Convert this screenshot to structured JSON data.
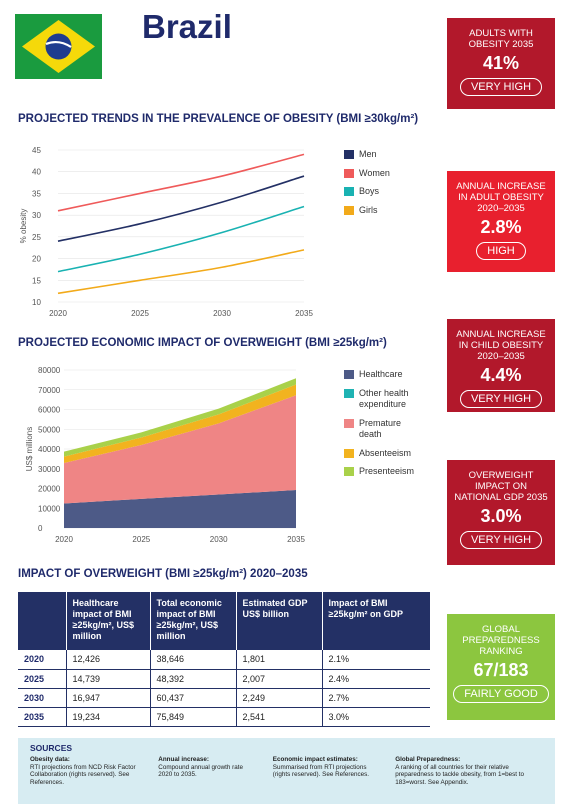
{
  "country": "Brazil",
  "colors": {
    "navy": "#233065",
    "red_dark": "#b2182b",
    "red_bright": "#e8202e",
    "green": "#8cc63f",
    "men": "#233065",
    "women": "#ef5a5a",
    "boys": "#19b2b2",
    "girls": "#f2aa1a",
    "healthcare": "#4d5a87",
    "other_health": "#1fb3b3",
    "premature_death": "#ef8585",
    "absenteeism": "#f2b31f",
    "presenteeism": "#a9d14a"
  },
  "sections": {
    "trends_title": "PROJECTED TRENDS IN THE PREVALENCE OF OBESITY (BMI ≥30kg/m²)",
    "economic_title": "PROJECTED ECONOMIC IMPACT OF OVERWEIGHT (BMI ≥25kg/m²)",
    "table_title": "IMPACT OF OVERWEIGHT (BMI ≥25kg/m²) 2020–2035"
  },
  "chart_data": [
    {
      "type": "line",
      "ylabel": "% obesity",
      "xlabel": "",
      "x": [
        2020,
        2025,
        2030,
        2035
      ],
      "yticks": [
        10,
        15,
        20,
        25,
        30,
        35,
        40,
        45
      ],
      "ylim": [
        10,
        45
      ],
      "legend_position": "right",
      "series": [
        {
          "name": "Men",
          "values": [
            24,
            28,
            33,
            39
          ],
          "color": "#233065"
        },
        {
          "name": "Women",
          "values": [
            31,
            35,
            39,
            44
          ],
          "color": "#ef5a5a"
        },
        {
          "name": "Boys",
          "values": [
            17,
            21,
            26,
            32
          ],
          "color": "#19b2b2"
        },
        {
          "name": "Girls",
          "values": [
            12,
            15,
            18,
            22
          ],
          "color": "#f2aa1a"
        }
      ]
    },
    {
      "type": "area",
      "stacked": true,
      "ylabel": "US$ millions",
      "xlabel": "",
      "x": [
        2020,
        2025,
        2030,
        2035
      ],
      "yticks": [
        0,
        10000,
        20000,
        30000,
        40000,
        50000,
        60000,
        70000,
        80000
      ],
      "ylim": [
        0,
        80000
      ],
      "legend_position": "right",
      "series": [
        {
          "name": "Healthcare",
          "values": [
            12426,
            14739,
            16947,
            19234
          ],
          "color": "#4d5a87"
        },
        {
          "name": "Other health expenditure",
          "values": [
            0,
            0,
            0,
            0
          ],
          "color": "#1fb3b3"
        },
        {
          "name": "Premature death",
          "values": [
            20500,
            27300,
            36000,
            48000
          ],
          "color": "#ef8585"
        },
        {
          "name": "Absenteeism",
          "values": [
            3200,
            3800,
            4600,
            5400
          ],
          "color": "#f2b31f"
        },
        {
          "name": "Presenteeism",
          "values": [
            2520,
            2553,
            2890,
            3215
          ],
          "color": "#a9d14a"
        }
      ]
    }
  ],
  "indicators": [
    {
      "label": "ADULTS WITH OBESITY 2035",
      "value": "41%",
      "rating": "VERY HIGH",
      "color": "#b2182b"
    },
    {
      "label": "ANNUAL INCREASE IN ADULT OBESITY 2020–2035",
      "value": "2.8%",
      "rating": "HIGH",
      "color": "#e8202e"
    },
    {
      "label": "ANNUAL INCREASE IN CHILD OBESITY 2020–2035",
      "value": "4.4%",
      "rating": "VERY HIGH",
      "color": "#b2182b"
    },
    {
      "label": "OVERWEIGHT IMPACT ON NATIONAL GDP 2035",
      "value": "3.0%",
      "rating": "VERY HIGH",
      "color": "#b2182b"
    },
    {
      "label": "GLOBAL PREPAREDNESS RANKING",
      "value": "67/183",
      "rating": "FAIRLY GOOD",
      "color": "#8cc63f"
    }
  ],
  "table": {
    "headers": [
      "",
      "Healthcare impact of BMI ≥25kg/m², US$ million",
      "Total economic impact of BMI ≥25kg/m², US$ million",
      "Estimated GDP US$ billion",
      "Impact of BMI ≥25kg/m² on GDP"
    ],
    "rows": [
      [
        "2020",
        "12,426",
        "38,646",
        "1,801",
        "2.1%"
      ],
      [
        "2025",
        "14,739",
        "48,392",
        "2,007",
        "2.4%"
      ],
      [
        "2030",
        "16,947",
        "60,437",
        "2,249",
        "2.7%"
      ],
      [
        "2035",
        "19,234",
        "75,849",
        "2,541",
        "3.0%"
      ]
    ]
  },
  "sources": {
    "title": "SOURCES",
    "items": [
      {
        "head": "Obesity data:",
        "text": "RTI projections from NCD Risk Factor Collaboration (rights reserved). See References."
      },
      {
        "head": "Annual increase:",
        "text": "Compound annual growth rate 2020 to 2035."
      },
      {
        "head": "Economic impact estimates:",
        "text": "Summarised from RTI projections (rights reserved). See References."
      },
      {
        "head": "Global Preparedness:",
        "text": "A ranking of all countries for their relative preparedness to tackle obesity, from 1=best to 183=worst. See Appendix."
      }
    ]
  }
}
